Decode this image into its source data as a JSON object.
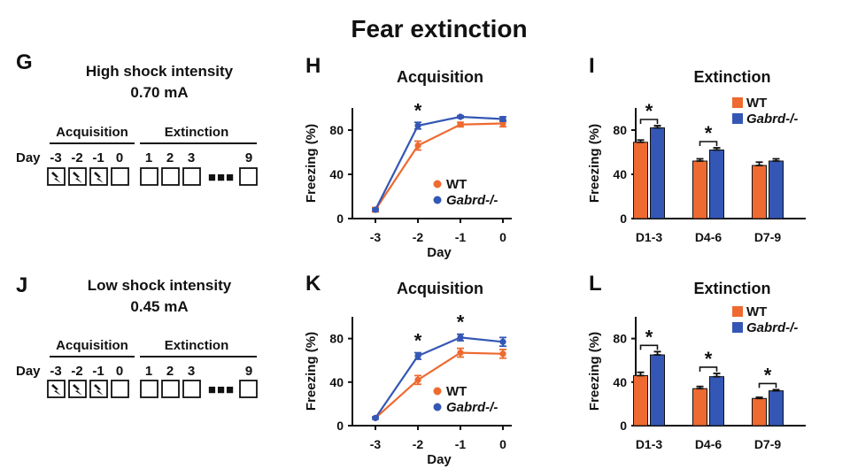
{
  "figure": {
    "title": "Fear extinction",
    "colors": {
      "wt": "#ee6a30",
      "ko": "#3457b5",
      "axis": "#111111"
    },
    "legend": {
      "wt": "WT",
      "ko": "Gabrd-/-"
    },
    "protocols": [
      {
        "letter": "G",
        "title": "High shock intensity",
        "intensity": "0.70 mA",
        "phase_acq": "Acquisition",
        "phase_ext": "Extinction",
        "day_word": "Day",
        "acq_days": [
          "-3",
          "-2",
          "-1",
          "0"
        ],
        "ext_days": [
          "1",
          "2",
          "3"
        ],
        "last_day": "9",
        "shock_days": 3,
        "ellipsis": "■■■",
        "shock_icon": "lightning-bolt-icon"
      },
      {
        "letter": "J",
        "title": "Low shock intensity",
        "intensity": "0.45 mA",
        "phase_acq": "Acquisition",
        "phase_ext": "Extinction",
        "day_word": "Day",
        "acq_days": [
          "-3",
          "-2",
          "-1",
          "0"
        ],
        "ext_days": [
          "1",
          "2",
          "3"
        ],
        "last_day": "9",
        "shock_days": 3,
        "ellipsis": "■■■",
        "shock_icon": "lightning-bolt-icon"
      }
    ]
  },
  "chart_data": [
    {
      "panel": "H",
      "type": "line",
      "title": "Acquisition",
      "xlabel": "Day",
      "ylabel": "Freezing (%)",
      "x": [
        "-3",
        "-2",
        "-1",
        "0"
      ],
      "ylim": [
        0,
        100
      ],
      "yticks": [
        0,
        40,
        80
      ],
      "series": [
        {
          "name": "WT",
          "values": [
            8,
            66,
            85,
            86
          ],
          "err": [
            2,
            4,
            2,
            3
          ]
        },
        {
          "name": "Gabrd-/-",
          "values": [
            8,
            84,
            92,
            90
          ],
          "err": [
            1,
            3,
            1,
            2
          ]
        }
      ],
      "significance": [
        {
          "x": "-2",
          "label": "*"
        }
      ],
      "legend_position": "lower-right"
    },
    {
      "panel": "I",
      "type": "bar",
      "title": "Extinction",
      "ylabel": "Freezing (%)",
      "categories": [
        "D1-3",
        "D4-6",
        "D7-9"
      ],
      "ylim": [
        0,
        100
      ],
      "yticks": [
        0,
        40,
        80
      ],
      "series": [
        {
          "name": "WT",
          "values": [
            69,
            52,
            48
          ],
          "err": [
            2,
            2,
            3
          ]
        },
        {
          "name": "Gabrd-/-",
          "values": [
            82,
            62,
            52
          ],
          "err": [
            2,
            2,
            2
          ]
        }
      ],
      "significance": [
        {
          "category": "D1-3",
          "label": "*"
        },
        {
          "category": "D4-6",
          "label": "*"
        }
      ],
      "legend_position": "top-right"
    },
    {
      "panel": "K",
      "type": "line",
      "title": "Acquisition",
      "xlabel": "Day",
      "ylabel": "Freezing (%)",
      "x": [
        "-3",
        "-2",
        "-1",
        "0"
      ],
      "ylim": [
        0,
        100
      ],
      "yticks": [
        0,
        40,
        80
      ],
      "series": [
        {
          "name": "WT",
          "values": [
            7,
            42,
            67,
            66
          ],
          "err": [
            1,
            4,
            4,
            4
          ]
        },
        {
          "name": "Gabrd-/-",
          "values": [
            7,
            64,
            81,
            77
          ],
          "err": [
            1,
            3,
            3,
            4
          ]
        }
      ],
      "significance": [
        {
          "x": "-2",
          "label": "*"
        },
        {
          "x": "-1",
          "label": "*"
        }
      ],
      "legend_position": "lower-right"
    },
    {
      "panel": "L",
      "type": "bar",
      "title": "Extinction",
      "ylabel": "Freezing (%)",
      "categories": [
        "D1-3",
        "D4-6",
        "D7-9"
      ],
      "ylim": [
        0,
        100
      ],
      "yticks": [
        0,
        40,
        80
      ],
      "series": [
        {
          "name": "WT",
          "values": [
            46,
            34,
            25
          ],
          "err": [
            3,
            2,
            1
          ]
        },
        {
          "name": "Gabrd-/-",
          "values": [
            65,
            45,
            32
          ],
          "err": [
            3,
            3,
            1
          ]
        }
      ],
      "significance": [
        {
          "category": "D1-3",
          "label": "*"
        },
        {
          "category": "D4-6",
          "label": "*"
        },
        {
          "category": "D7-9",
          "label": "*"
        }
      ],
      "legend_position": "top-right"
    }
  ]
}
